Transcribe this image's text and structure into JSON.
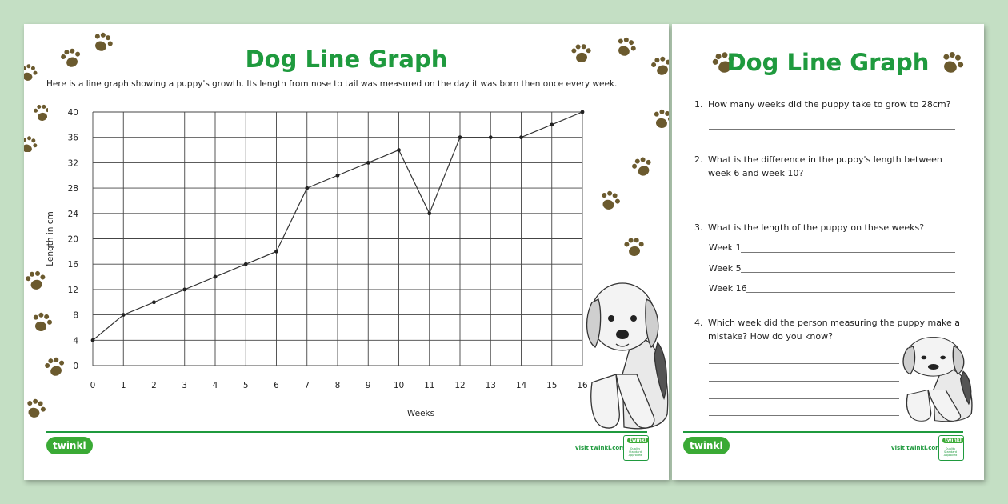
{
  "left_page": {
    "title": "Dog Line Graph",
    "intro": "Here is a line graph showing a puppy's growth. Its length from nose to tail was measured on the day it was born then once every week.",
    "footer": {
      "logo": "twinkl",
      "visit": "visit twinkl.com",
      "badge_top": "twinkl",
      "badge_text": "Quality Standard Approved"
    }
  },
  "right_page": {
    "title": "Dog Line Graph",
    "questions": [
      {
        "num": "1.",
        "text": "How many weeks did the puppy take to grow to 28cm?"
      },
      {
        "num": "2.",
        "text": "What is the difference in the puppy's length between week 6 and week 10?"
      },
      {
        "num": "3.",
        "text": "What is the length of the puppy on these weeks?"
      },
      {
        "num": "4.",
        "text": "Which week did the person measuring the puppy make a mistake? How do you know?"
      }
    ],
    "weeks": [
      "Week 1",
      "Week 5",
      "Week 16"
    ],
    "footer": {
      "logo": "twinkl",
      "visit": "visit twinkl.com",
      "badge_top": "twinkl",
      "badge_text": "Quality Standard Approved"
    }
  },
  "chart_data": {
    "type": "line",
    "title": "",
    "xlabel": "Weeks",
    "ylabel": "Length in cm",
    "x": [
      0,
      1,
      2,
      3,
      4,
      5,
      6,
      7,
      8,
      9,
      10,
      11,
      12,
      13,
      14,
      15,
      16
    ],
    "series": [
      {
        "values": [
          4,
          8,
          10,
          12,
          14,
          16,
          18,
          28,
          30,
          32,
          34,
          24,
          36,
          36,
          36,
          38,
          40
        ]
      }
    ],
    "xlim": [
      0,
      16
    ],
    "ylim": [
      0,
      40
    ],
    "yticks": [
      0,
      4,
      8,
      12,
      16,
      20,
      24,
      28,
      32,
      36,
      40
    ],
    "grid": true,
    "line_color": "#333333"
  },
  "colors": {
    "title_green": "#1f9a3e",
    "paw_brown": "#6b5a2e",
    "background": "#c4dfc4"
  }
}
